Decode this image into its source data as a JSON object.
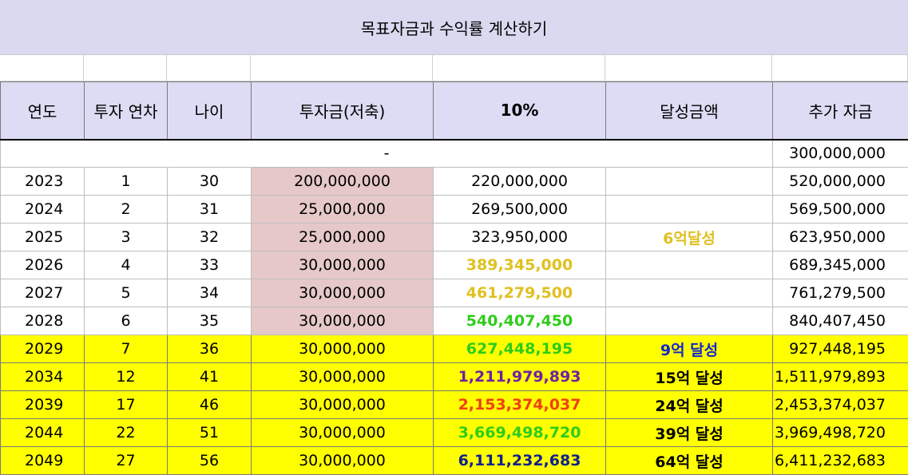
{
  "title": "목표자금과 수익률 계산하기",
  "headers": [
    "연도",
    "투자 연차",
    "나이",
    "투자금(저축)",
    "10%",
    "달성금액",
    "추가 자금"
  ],
  "initial_row": {
    "dash": "-",
    "extra": "300,000,000"
  },
  "rows": [
    {
      "year": "2023",
      "n": "1",
      "age": "30",
      "invest": "200,000,000",
      "value": "220,000,000",
      "goal": "",
      "extra": "520,000,000"
    },
    {
      "year": "2024",
      "n": "2",
      "age": "31",
      "invest": "25,000,000",
      "value": "269,500,000",
      "goal": "",
      "extra": "569,500,000"
    },
    {
      "year": "2025",
      "n": "3",
      "age": "32",
      "invest": "25,000,000",
      "value": "323,950,000",
      "goal": "6억달성",
      "extra": "623,950,000"
    },
    {
      "year": "2026",
      "n": "4",
      "age": "33",
      "invest": "30,000,000",
      "value": "389,345,000",
      "goal": "",
      "extra": "689,345,000"
    },
    {
      "year": "2027",
      "n": "5",
      "age": "34",
      "invest": "30,000,000",
      "value": "461,279,500",
      "goal": "",
      "extra": "761,279,500"
    },
    {
      "year": "2028",
      "n": "6",
      "age": "35",
      "invest": "30,000,000",
      "value": "540,407,450",
      "goal": "",
      "extra": "840,407,450"
    },
    {
      "year": "2029",
      "n": "7",
      "age": "36",
      "invest": "30,000,000",
      "value": "627,448,195",
      "goal": "9억 달성",
      "extra": "927,448,195"
    },
    {
      "year": "2034",
      "n": "12",
      "age": "41",
      "invest": "30,000,000",
      "value": "1,211,979,893",
      "goal": "15억 달성",
      "extra": "1,511,979,893"
    },
    {
      "year": "2039",
      "n": "17",
      "age": "46",
      "invest": "30,000,000",
      "value": "2,153,374,037",
      "goal": "24억 달성",
      "extra": "2,453,374,037"
    },
    {
      "year": "2044",
      "n": "22",
      "age": "51",
      "invest": "30,000,000",
      "value": "3,669,498,720",
      "goal": "39억 달성",
      "extra": "3,969,498,720"
    },
    {
      "year": "2049",
      "n": "27",
      "age": "56",
      "invest": "30,000,000",
      "value": "6,111,232,683",
      "goal": "64억 달성",
      "extra": "6,411,232,683"
    }
  ],
  "colors": {
    "title_bg": "#d9d9f0",
    "header_bg": "#dcdcf4",
    "pink": "#e6c8c8",
    "highlight": "#ffff00",
    "gold": "#e0c020",
    "green": "#2ecc1a",
    "blue": "#1428c8",
    "purple": "#7020a0",
    "red": "#f04010",
    "navy": "#102090"
  }
}
